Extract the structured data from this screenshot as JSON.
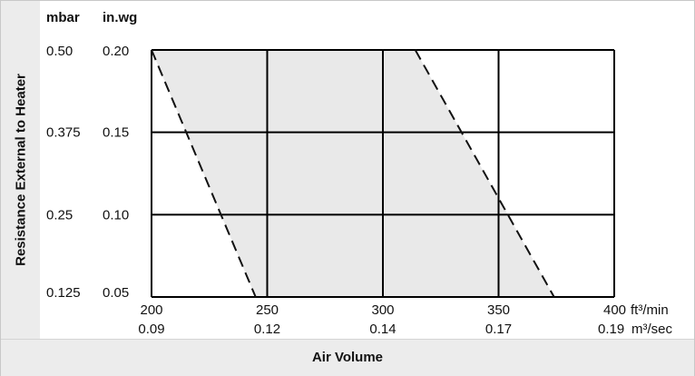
{
  "chart_data": {
    "type": "area",
    "title": "",
    "xlabel": "Air Volume",
    "ylabel": "Resistance External to Heater",
    "y_unit_primary": "in.wg",
    "y_unit_secondary": "mbar",
    "x_unit_primary": "ft³/min",
    "x_unit_secondary": "m³/sec",
    "xlim": [
      200,
      400
    ],
    "ylim": [
      0.05,
      0.2
    ],
    "x_ticks": [
      {
        "primary": "200",
        "secondary": "0.09"
      },
      {
        "primary": "250",
        "secondary": "0.12"
      },
      {
        "primary": "300",
        "secondary": "0.14"
      },
      {
        "primary": "350",
        "secondary": "0.17"
      },
      {
        "primary": "400",
        "secondary": "0.19"
      }
    ],
    "y_ticks": [
      {
        "primary": "0.20",
        "secondary": "0.50",
        "value": 0.2
      },
      {
        "primary": "0.15",
        "secondary": "0.375",
        "value": 0.15
      },
      {
        "primary": "0.10",
        "secondary": "0.25",
        "value": 0.1
      },
      {
        "primary": "0.05",
        "secondary": "0.125",
        "value": 0.05
      }
    ],
    "grid": true,
    "region_color": "#e9e9e9",
    "boundaries": [
      {
        "points": [
          {
            "x": 200,
            "y": 0.2
          },
          {
            "x": 245,
            "y": 0.05
          }
        ]
      },
      {
        "points": [
          {
            "x": 314,
            "y": 0.2
          },
          {
            "x": 374,
            "y": 0.05
          }
        ]
      }
    ]
  }
}
